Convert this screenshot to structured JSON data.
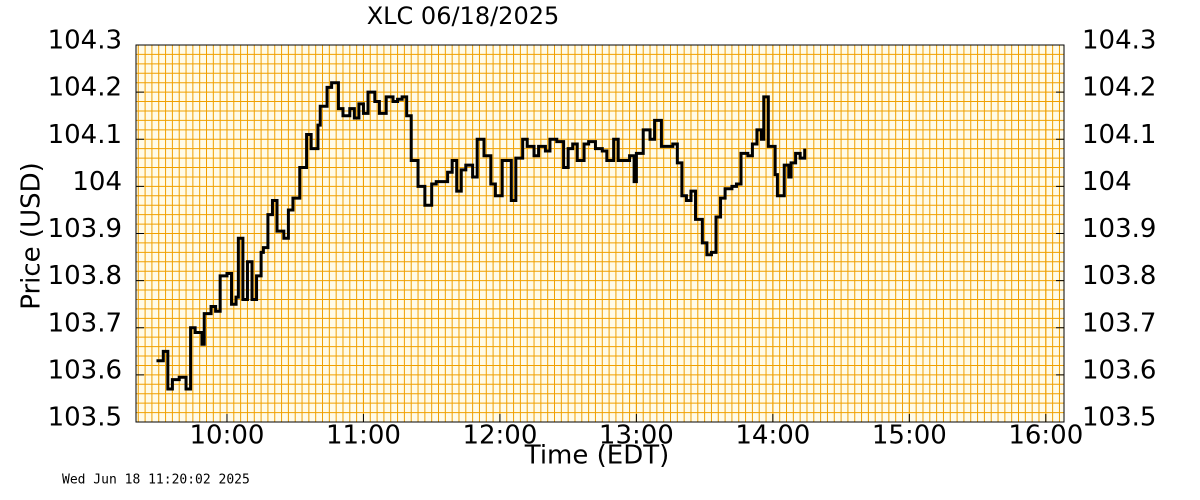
{
  "chart_data": {
    "type": "line",
    "title": "XLC  06/18/2025",
    "x_label": "Time (EDT)",
    "y_label": "Price (USD)",
    "footer": "Wed Jun 18 11:20:02 2025",
    "step": "post",
    "grid": true,
    "color": "#000000",
    "grid_color": "#f0a000",
    "background": "#fffbe8",
    "xlim": [
      560,
      968
    ],
    "ylim": [
      103.5,
      104.3
    ],
    "xticks": [
      {
        "value": 600,
        "label": "10:00"
      },
      {
        "value": 660,
        "label": "11:00"
      },
      {
        "value": 720,
        "label": "12:00"
      },
      {
        "value": 780,
        "label": "13:00"
      },
      {
        "value": 840,
        "label": "14:00"
      },
      {
        "value": 900,
        "label": "15:00"
      },
      {
        "value": 960,
        "label": "16:00"
      }
    ],
    "yticks": [
      103.5,
      103.6,
      103.7,
      103.8,
      103.9,
      104,
      104.1,
      104.2,
      104.3
    ],
    "series": [
      {
        "name": "XLC",
        "color": "#000000",
        "x": [
          569,
          572,
          574,
          576,
          579,
          582,
          584,
          586,
          589,
          590,
          593,
          595,
          597,
          600,
          602,
          604,
          605,
          607,
          609,
          611,
          613,
          615,
          616,
          618,
          620,
          622,
          625,
          627,
          629,
          632,
          635,
          637,
          640,
          641,
          644,
          646,
          649,
          651,
          654,
          656,
          658,
          660,
          662,
          665,
          667,
          670,
          673,
          675,
          677,
          679,
          681,
          684,
          687,
          690,
          692,
          697,
          699,
          701,
          703,
          705,
          708,
          710,
          713,
          716,
          718,
          721,
          725,
          727,
          730,
          732,
          735,
          737,
          740,
          742,
          745,
          748,
          750,
          752,
          754,
          757,
          759,
          762,
          765,
          767,
          770,
          772,
          777,
          779,
          780,
          783,
          786,
          788,
          791,
          793,
          796,
          798,
          800,
          802,
          804,
          806,
          809,
          811,
          813,
          815,
          817,
          819,
          822,
          824,
          826,
          829,
          831,
          833,
          835,
          836,
          838,
          841,
          842,
          845,
          847,
          848,
          850,
          852,
          854
        ],
        "values": [
          103.63,
          103.65,
          103.57,
          103.59,
          103.595,
          103.57,
          103.7,
          103.69,
          103.665,
          103.73,
          103.745,
          103.735,
          103.81,
          103.815,
          103.75,
          103.765,
          103.89,
          103.76,
          103.84,
          103.76,
          103.81,
          103.86,
          103.87,
          103.94,
          103.97,
          103.905,
          103.89,
          103.95,
          103.975,
          104.04,
          104.11,
          104.08,
          104.13,
          104.17,
          104.21,
          104.22,
          104.165,
          104.15,
          104.165,
          104.145,
          104.175,
          104.155,
          104.2,
          104.18,
          104.155,
          104.19,
          104.18,
          104.185,
          104.19,
          104.15,
          104.055,
          104.0,
          103.96,
          104.005,
          104.01,
          104.03,
          104.055,
          103.99,
          104.035,
          104.045,
          104.02,
          104.1,
          104.065,
          104.005,
          103.98,
          104.055,
          103.97,
          104.06,
          104.1,
          104.085,
          104.065,
          104.085,
          104.075,
          104.1,
          104.095,
          104.04,
          104.08,
          104.09,
          104.055,
          104.09,
          104.095,
          104.08,
          104.075,
          104.055,
          104.1,
          104.055,
          104.065,
          104.01,
          104.07,
          104.12,
          104.1,
          104.14,
          104.085,
          104.085,
          104.09,
          104.05,
          103.98,
          103.97,
          103.99,
          103.93,
          103.88,
          103.855,
          103.86,
          103.935,
          103.975,
          103.995,
          104.0,
          104.005,
          104.07,
          104.065,
          104.09,
          104.12,
          104.1,
          104.19,
          104.085,
          104.025,
          103.98,
          104.045,
          104.02,
          104.05,
          104.07,
          104.06,
          104.08
        ]
      }
    ]
  }
}
